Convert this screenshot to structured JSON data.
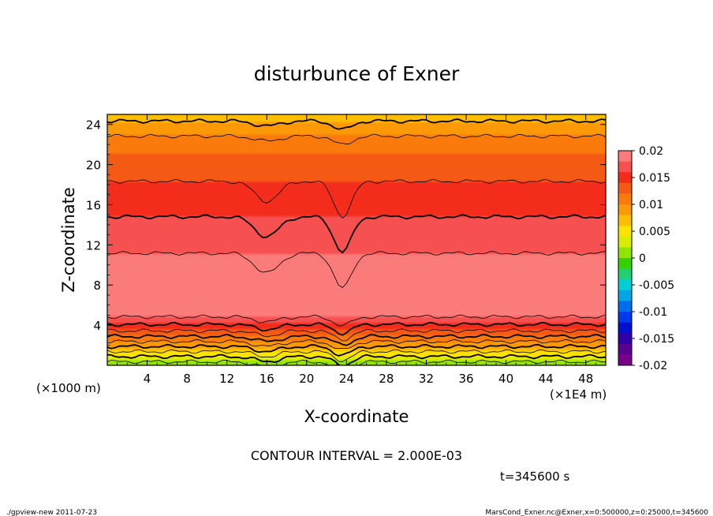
{
  "chart_data": {
    "type": "heatmap",
    "title": "disturbunce of Exner",
    "xlabel": "X-coordinate",
    "ylabel": "Z-coordinate",
    "x_unit": "(×1E4 m)",
    "y_unit": "(×1000 m)",
    "xlim": [
      0,
      50
    ],
    "ylim": [
      0,
      25
    ],
    "x_ticks": [
      "4",
      "8",
      "12",
      "16",
      "20",
      "24",
      "28",
      "32",
      "36",
      "40",
      "44",
      "48"
    ],
    "y_ticks": [
      "4",
      "8",
      "12",
      "16",
      "20",
      "24"
    ],
    "x_tick_values": [
      4,
      8,
      12,
      16,
      20,
      24,
      28,
      32,
      36,
      40,
      44,
      48
    ],
    "y_tick_values": [
      4,
      8,
      12,
      16,
      20,
      24
    ],
    "colorbar": {
      "labels": [
        "0.02",
        "0.015",
        "0.01",
        "0.005",
        "0",
        "-0.005",
        "-0.01",
        "-0.015",
        "-0.02"
      ],
      "levels": [
        0.02,
        0.018,
        0.016,
        0.014,
        0.012,
        0.01,
        0.008,
        0.006,
        0.004,
        0.002,
        0.0,
        -0.002,
        -0.004,
        -0.006,
        -0.008,
        -0.01,
        -0.012,
        -0.014,
        -0.016,
        -0.018,
        -0.02
      ],
      "colors": [
        "#fb7a7a",
        "#f75050",
        "#f32c1c",
        "#f55a14",
        "#fa7a0c",
        "#fc9906",
        "#ffbf00",
        "#ffe300",
        "#d6ee00",
        "#90e400",
        "#35d200",
        "#22d070",
        "#00d0d6",
        "#00a6e6",
        "#006cee",
        "#0038f0",
        "#0010d0",
        "#3000a8",
        "#5a0090",
        "#7a0088"
      ]
    },
    "field_profile": {
      "z": [
        0,
        0.5,
        1,
        1.5,
        2,
        2.5,
        3,
        3.5,
        4,
        4.5,
        5,
        6,
        7,
        8,
        9,
        10,
        11,
        12,
        13,
        14,
        15,
        16,
        17,
        18,
        19,
        20,
        21,
        22,
        23,
        24,
        25
      ],
      "value": [
        0.0008,
        0.0025,
        0.0045,
        0.0065,
        0.0085,
        0.0105,
        0.0125,
        0.0142,
        0.0158,
        0.0172,
        0.0184,
        0.0192,
        0.0197,
        0.02,
        0.0196,
        0.0188,
        0.0181,
        0.0175,
        0.0169,
        0.0164,
        0.0159,
        0.0154,
        0.0148,
        0.0142,
        0.0136,
        0.0129,
        0.012,
        0.011,
        0.0098,
        0.0084,
        0.0072
      ]
    },
    "dips": [
      {
        "x": 16,
        "depth": 2.0,
        "width": 1.2
      },
      {
        "x": 23.6,
        "depth": 3.5,
        "width": 0.9
      }
    ],
    "contour_interval": "CONTOUR INTERVAL = 2.000E-03",
    "time_label": "t=345600 s"
  },
  "footer": {
    "left": "./gpview-new  2011-07-23",
    "right": "MarsCond_Exner.nc@Exner,x=0:500000,z=0:25000,t=345600"
  }
}
